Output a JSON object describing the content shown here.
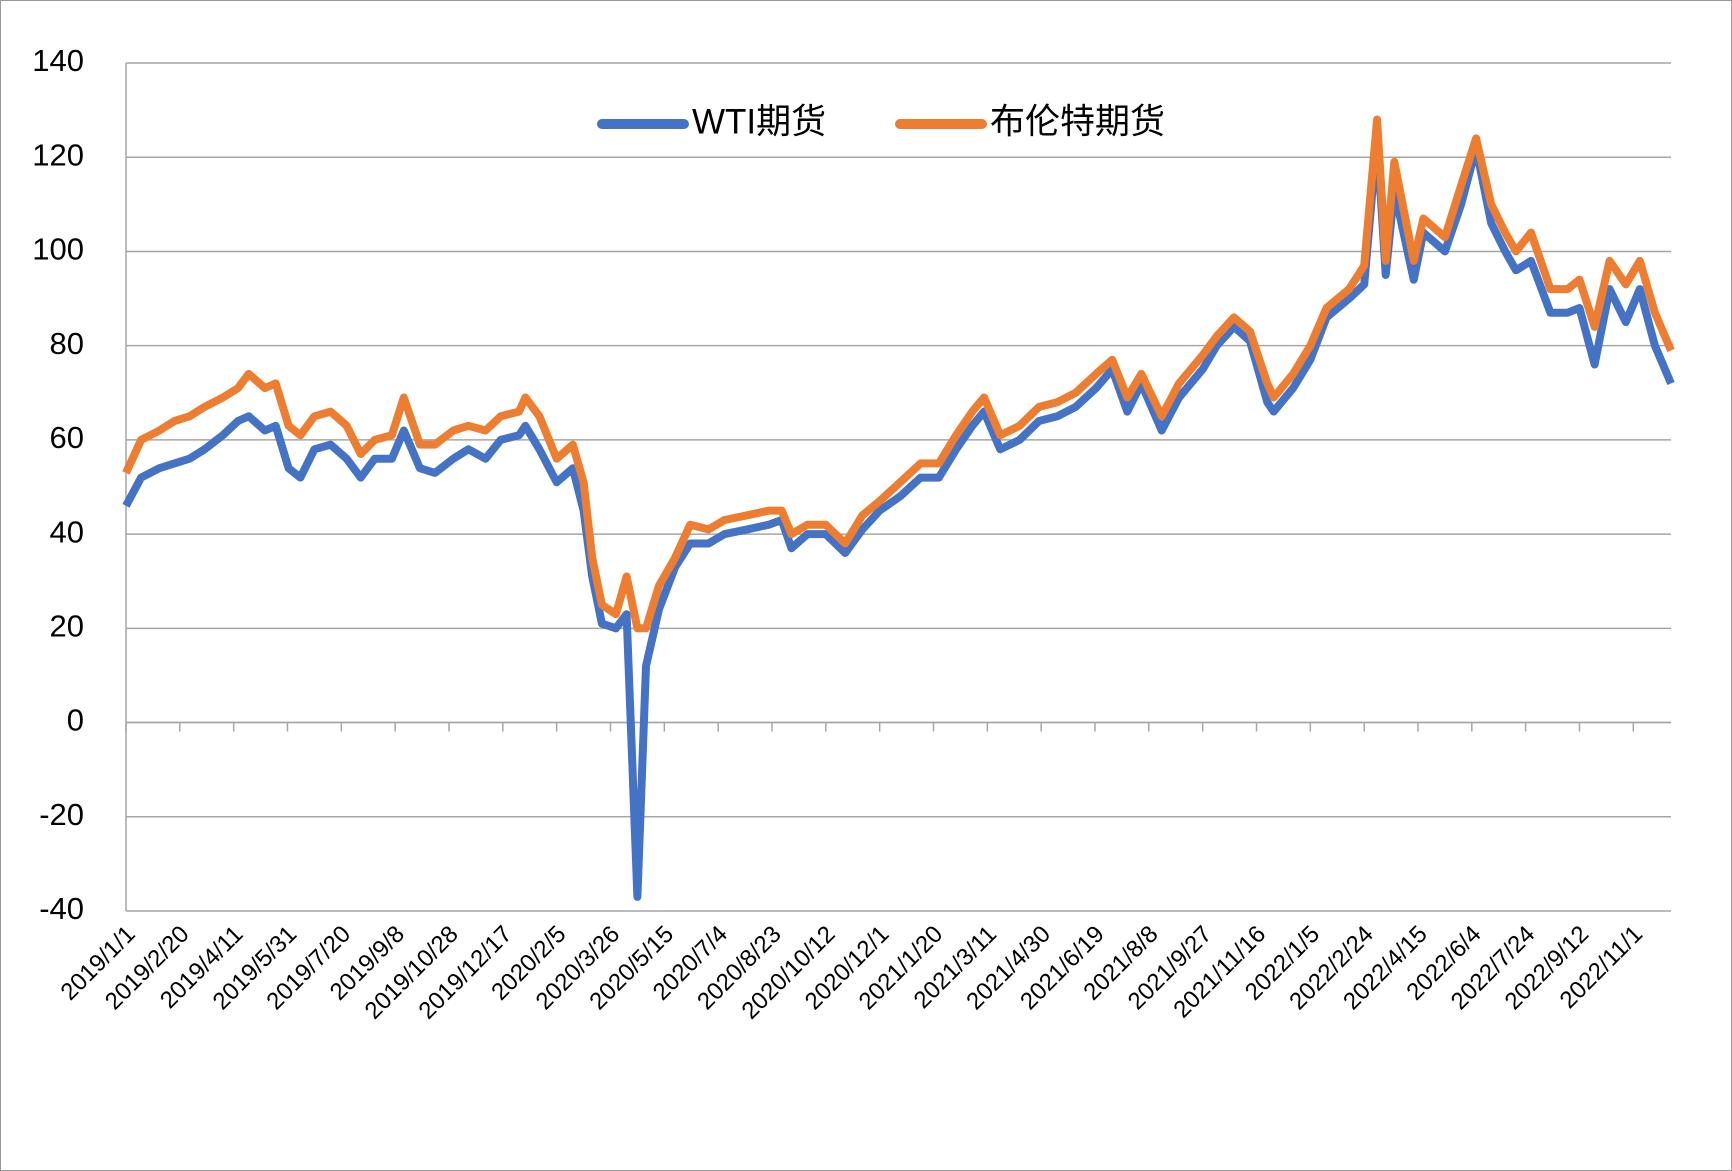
{
  "chart_data": {
    "type": "line",
    "x": [
      "2019/1/1",
      "2019/1/15",
      "2019/2/1",
      "2019/2/15",
      "2019/3/1",
      "2019/3/15",
      "2019/4/1",
      "2019/4/15",
      "2019/4/25",
      "2019/5/10",
      "2019/5/20",
      "2019/6/1",
      "2019/6/12",
      "2019/6/25",
      "2019/7/10",
      "2019/7/25",
      "2019/8/7",
      "2019/8/20",
      "2019/9/5",
      "2019/9/16",
      "2019/10/1",
      "2019/10/15",
      "2019/11/1",
      "2019/11/15",
      "2019/12/1",
      "2019/12/15",
      "2020/1/1",
      "2020/1/7",
      "2020/1/20",
      "2020/2/5",
      "2020/2/20",
      "2020/3/1",
      "2020/3/9",
      "2020/3/18",
      "2020/3/31",
      "2020/4/10",
      "2020/4/20",
      "2020/4/28",
      "2020/5/10",
      "2020/5/25",
      "2020/6/8",
      "2020/6/25",
      "2020/7/10",
      "2020/7/31",
      "2020/8/20",
      "2020/9/1",
      "2020/9/10",
      "2020/9/25",
      "2020/10/12",
      "2020/10/30",
      "2020/11/15",
      "2020/12/1",
      "2020/12/20",
      "2021/1/8",
      "2021/1/25",
      "2021/2/10",
      "2021/2/25",
      "2021/3/8",
      "2021/3/23",
      "2021/4/10",
      "2021/4/28",
      "2021/5/15",
      "2021/6/1",
      "2021/6/20",
      "2021/7/5",
      "2021/7/19",
      "2021/8/1",
      "2021/8/20",
      "2021/9/5",
      "2021/9/27",
      "2021/10/10",
      "2021/10/26",
      "2021/11/10",
      "2021/11/26",
      "2021/12/2",
      "2021/12/20",
      "2022/1/5",
      "2022/1/20",
      "2022/2/10",
      "2022/2/24",
      "2022/3/8",
      "2022/3/16",
      "2022/3/24",
      "2022/4/11",
      "2022/4/20",
      "2022/5/10",
      "2022/5/25",
      "2022/6/8",
      "2022/6/22",
      "2022/7/5",
      "2022/7/15",
      "2022/7/29",
      "2022/8/16",
      "2022/9/1",
      "2022/9/12",
      "2022/9/26",
      "2022/10/10",
      "2022/10/25",
      "2022/11/7",
      "2022/11/21",
      "2022/12/6"
    ],
    "series": [
      {
        "name": "WTI期货",
        "color": "#4472c4",
        "values": [
          46,
          52,
          54,
          55,
          56,
          58,
          61,
          64,
          65,
          62,
          63,
          54,
          52,
          58,
          59,
          56,
          52,
          56,
          56,
          62,
          54,
          53,
          56,
          58,
          56,
          60,
          61,
          63,
          58,
          51,
          54,
          45,
          31,
          21,
          20,
          23,
          -37,
          12,
          24,
          33,
          38,
          38,
          40,
          41,
          42,
          43,
          37,
          40,
          40,
          36,
          41,
          45,
          48,
          52,
          52,
          58,
          63,
          66,
          58,
          60,
          64,
          65,
          67,
          71,
          75,
          66,
          72,
          62,
          69,
          75,
          80,
          84,
          81,
          68,
          66,
          71,
          77,
          86,
          90,
          93,
          124,
          95,
          113,
          94,
          104,
          100,
          110,
          122,
          106,
          100,
          96,
          98,
          87,
          87,
          88,
          76,
          92,
          85,
          92,
          80,
          72
        ]
      },
      {
        "name": "布伦特期货",
        "color": "#ed7d31",
        "values": [
          53,
          60,
          62,
          64,
          65,
          67,
          69,
          71,
          74,
          71,
          72,
          63,
          61,
          65,
          66,
          63,
          57,
          60,
          61,
          69,
          59,
          59,
          62,
          63,
          62,
          65,
          66,
          69,
          65,
          56,
          59,
          51,
          35,
          25,
          23,
          31,
          20,
          20,
          29,
          35,
          42,
          41,
          43,
          44,
          45,
          45,
          40,
          42,
          42,
          38,
          44,
          47,
          51,
          55,
          55,
          61,
          66,
          69,
          61,
          63,
          67,
          68,
          70,
          74,
          77,
          69,
          74,
          65,
          72,
          78,
          82,
          86,
          83,
          72,
          69,
          74,
          80,
          88,
          92,
          97,
          128,
          98,
          119,
          98,
          107,
          103,
          114,
          124,
          110,
          104,
          100,
          104,
          92,
          92,
          94,
          84,
          98,
          93,
          98,
          87,
          79
        ]
      }
    ],
    "xlim": [
      "2019/1/1",
      "2022/12/6"
    ],
    "xticks": [
      "2019/1/1",
      "2019/2/20",
      "2019/4/11",
      "2019/5/31",
      "2019/7/20",
      "2019/9/8",
      "2019/10/28",
      "2019/12/17",
      "2020/2/5",
      "2020/3/26",
      "2020/5/15",
      "2020/7/4",
      "2020/8/23",
      "2020/10/12",
      "2020/12/1",
      "2021/1/20",
      "2021/3/11",
      "2021/4/30",
      "2021/6/19",
      "2021/8/8",
      "2021/9/27",
      "2021/11/16",
      "2022/1/5",
      "2022/2/24",
      "2022/4/15",
      "2022/6/4",
      "2022/7/24",
      "2022/9/12",
      "2022/11/1"
    ],
    "ylim": [
      -40,
      140
    ],
    "yticks": [
      -40,
      -20,
      0,
      20,
      40,
      60,
      80,
      100,
      120,
      140
    ],
    "grid": true,
    "legend": "top"
  }
}
